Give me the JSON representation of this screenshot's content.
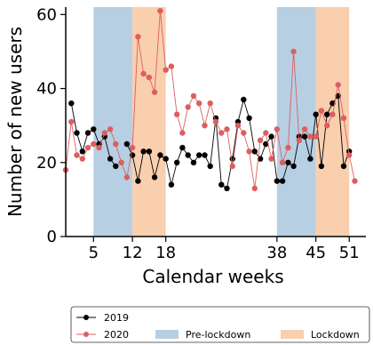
{
  "chart_data": {
    "type": "line",
    "xlabel": "Calendar weeks",
    "ylabel": "Number of new users",
    "xlim": [
      0,
      54
    ],
    "ylim": [
      0,
      62
    ],
    "xticks": [
      5,
      12,
      18,
      38,
      45,
      51
    ],
    "yticks": [
      0,
      20,
      40,
      60
    ],
    "grid": false,
    "legend_position": "bottom",
    "shaded_regions": [
      {
        "name": "Pre-lockdown",
        "ranges": [
          [
            5,
            12
          ],
          [
            38,
            45
          ]
        ],
        "color": "#b7cfe3"
      },
      {
        "name": "Lockdown",
        "ranges": [
          [
            12,
            18
          ],
          [
            45,
            51
          ]
        ],
        "color": "#f9cfae"
      }
    ],
    "series": [
      {
        "name": "2019",
        "color": "#000000",
        "x": [
          1,
          2,
          3,
          4,
          5,
          6,
          7,
          8,
          9,
          10,
          11,
          12,
          13,
          14,
          15,
          16,
          17,
          18,
          19,
          20,
          21,
          22,
          23,
          24,
          25,
          26,
          27,
          28,
          29,
          30,
          31,
          32,
          33,
          34,
          35,
          36,
          37,
          38,
          39,
          40,
          41,
          42,
          43,
          44,
          45,
          46,
          47,
          48,
          49,
          50,
          51,
          52
        ],
        "values": [
          36,
          28,
          23,
          28,
          29,
          25,
          27,
          21,
          19,
          null,
          25,
          22,
          15,
          23,
          23,
          16,
          22,
          21,
          14,
          20,
          24,
          22,
          20,
          22,
          22,
          19,
          32,
          14,
          13,
          21,
          31,
          37,
          32,
          23,
          21,
          25,
          27,
          15,
          15,
          20,
          19,
          27,
          27,
          21,
          33,
          19,
          33,
          36,
          38,
          19,
          23,
          null
        ]
      },
      {
        "name": "2020",
        "color": "#dc5f5f",
        "x": [
          0,
          1,
          2,
          3,
          4,
          5,
          6,
          7,
          8,
          9,
          10,
          11,
          12,
          13,
          14,
          15,
          16,
          17,
          18,
          19,
          20,
          21,
          22,
          23,
          24,
          25,
          26,
          27,
          28,
          29,
          30,
          31,
          32,
          33,
          34,
          35,
          36,
          37,
          38,
          39,
          40,
          41,
          42,
          43,
          44,
          45,
          46,
          47,
          48,
          49,
          50,
          51,
          52
        ],
        "values": [
          18,
          31,
          22,
          21,
          24,
          25,
          24,
          28,
          29,
          25,
          20,
          16,
          24,
          54,
          44,
          43,
          39,
          61,
          45,
          46,
          33,
          28,
          35,
          38,
          36,
          30,
          36,
          31,
          28,
          29,
          19,
          30,
          28,
          23,
          13,
          26,
          28,
          21,
          29,
          20,
          24,
          50,
          26,
          29,
          27,
          27,
          34,
          30,
          33,
          41,
          32,
          22,
          15
        ]
      }
    ],
    "legend": {
      "line_2019": "2019",
      "line_2020": "2020",
      "patch_pre": "Pre-lockdown",
      "patch_lock": "Lockdown"
    }
  }
}
